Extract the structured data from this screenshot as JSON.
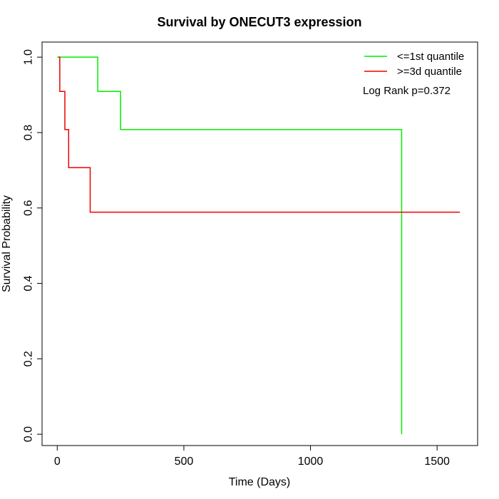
{
  "chart_data": {
    "type": "line",
    "title": "Survival by ONECUT3 expression",
    "xlabel": "Time (Days)",
    "ylabel": "Survival Probability",
    "xlim": [
      -60,
      1660
    ],
    "ylim": [
      -0.03,
      1.04
    ],
    "xticks": [
      0,
      500,
      1000,
      1500
    ],
    "yticks": [
      0.0,
      0.2,
      0.4,
      0.6,
      0.8,
      1.0
    ],
    "xtick_labels": [
      "0",
      "500",
      "1000",
      "1500"
    ],
    "ytick_labels": [
      "0.0",
      "0.2",
      "0.4",
      "0.6",
      "0.8",
      "1.0"
    ],
    "grid": false,
    "legend_position": "top-right",
    "annotation": "Log Rank p=0.372",
    "series": [
      {
        "name": "<=1st quantile",
        "color": "#00ee00",
        "step": true,
        "x": [
          0,
          160,
          250,
          1360,
          1360
        ],
        "y": [
          1.0,
          0.909,
          0.808,
          0.808,
          0.0
        ]
      },
      {
        "name": ">=3d quantile",
        "color": "#ee0000",
        "step": true,
        "x": [
          5,
          10,
          30,
          45,
          130,
          1590
        ],
        "y": [
          1.0,
          0.909,
          0.808,
          0.707,
          0.589,
          0.589
        ]
      }
    ]
  }
}
